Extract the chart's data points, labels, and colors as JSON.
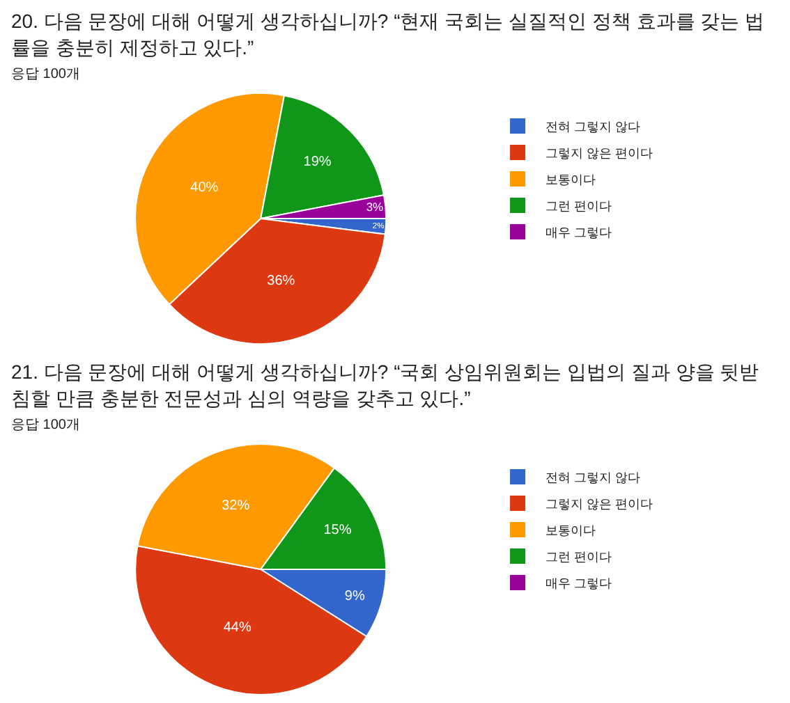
{
  "chart_data": [
    {
      "type": "pie",
      "title": "20. 다음 문장에 대해 어떻게 생각하십니까?  “현재 국회는 실질적인 정책 효과를 갖는 법률을 충분히 제정하고 있다.”",
      "subtitle": "응답 100개",
      "categories": [
        "전혀 그렇지 않다",
        "그렇지 않은 편이다",
        "보통이다",
        "그런 편이다",
        "매우 그렇다"
      ],
      "values": [
        2,
        36,
        40,
        19,
        3
      ],
      "colors": [
        "#3366cc",
        "#dc3912",
        "#ff9900",
        "#109618",
        "#990099"
      ],
      "value_labels": [
        "2%",
        "36%",
        "40%",
        "19%",
        "3%"
      ],
      "legend": "right"
    },
    {
      "type": "pie",
      "title": "21. 다음 문장에 대해 어떻게 생각하십니까?  “국회 상임위원회는 입법의 질과 양을 뒷받침할 만큼 충분한 전문성과 심의 역량을 갖추고 있다.”",
      "subtitle": "응답 100개",
      "categories": [
        "전혀 그렇지 않다",
        "그렇지 않은 편이다",
        "보통이다",
        "그런 편이다",
        "매우 그렇다"
      ],
      "values": [
        9,
        44,
        32,
        15,
        0
      ],
      "colors": [
        "#3366cc",
        "#dc3912",
        "#ff9900",
        "#109618",
        "#990099"
      ],
      "value_labels": [
        "9%",
        "44%",
        "32%",
        "15%",
        null
      ],
      "legend": "right"
    }
  ]
}
